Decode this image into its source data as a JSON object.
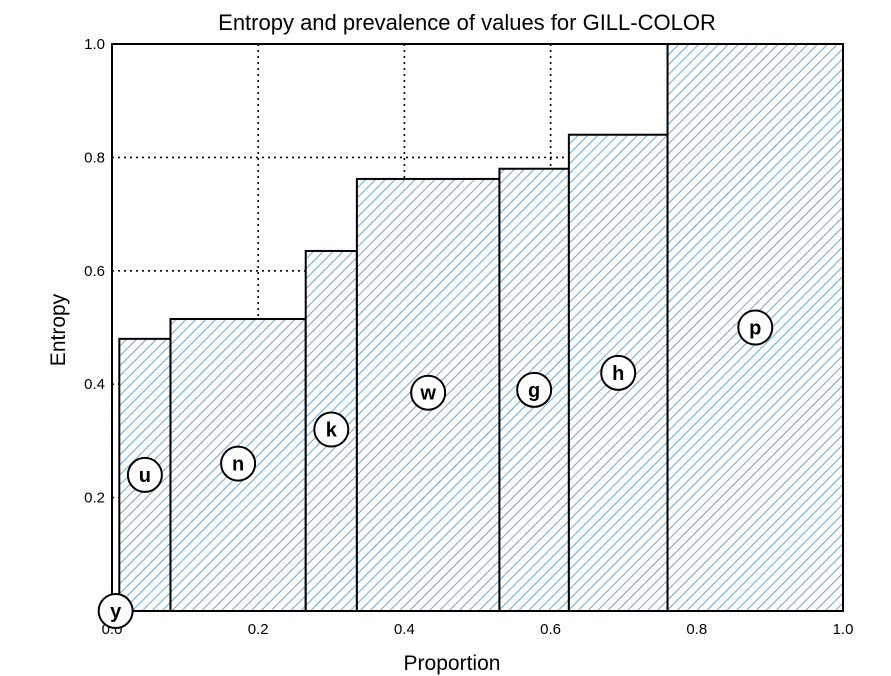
{
  "chart_data": {
    "type": "bar",
    "title": "Entropy and prevalence of values for GILL-COLOR",
    "xlabel": "Proportion",
    "ylabel": "Entropy",
    "xlim": [
      0.0,
      1.0
    ],
    "ylim": [
      0.0,
      1.0
    ],
    "xticks": [
      "0.0",
      "0.2",
      "0.4",
      "0.6",
      "0.8",
      "1.0"
    ],
    "yticks": [
      "0.2",
      "0.4",
      "0.6",
      "0.8",
      "1.0"
    ],
    "grid": true,
    "bar_color": "#4a90c2",
    "bars": [
      {
        "label": "y",
        "x_start": 0.0,
        "x_end": 0.01,
        "entropy": 0.0,
        "marker_y": 0.0
      },
      {
        "label": "u",
        "x_start": 0.01,
        "x_end": 0.08,
        "entropy": 0.48,
        "marker_y": 0.24
      },
      {
        "label": "n",
        "x_start": 0.08,
        "x_end": 0.265,
        "entropy": 0.515,
        "marker_y": 0.26
      },
      {
        "label": "k",
        "x_start": 0.265,
        "x_end": 0.335,
        "entropy": 0.635,
        "marker_y": 0.32
      },
      {
        "label": "w",
        "x_start": 0.335,
        "x_end": 0.53,
        "entropy": 0.762,
        "marker_y": 0.385
      },
      {
        "label": "g",
        "x_start": 0.53,
        "x_end": 0.625,
        "entropy": 0.78,
        "marker_y": 0.39
      },
      {
        "label": "h",
        "x_start": 0.625,
        "x_end": 0.76,
        "entropy": 0.84,
        "marker_y": 0.42
      },
      {
        "label": "p",
        "x_start": 0.76,
        "x_end": 1.0,
        "entropy": 1.0,
        "marker_y": 0.5
      }
    ]
  }
}
